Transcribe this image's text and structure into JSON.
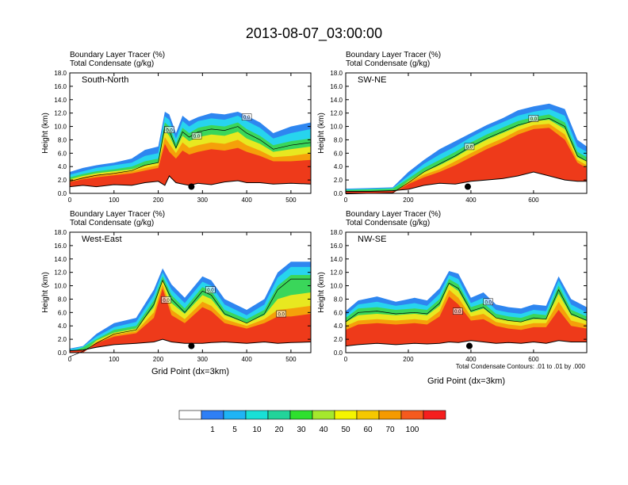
{
  "figure": {
    "title": "2013-08-07_03:00:00",
    "contour_note": "Total Condensate Contours: .01 to .01 by .000",
    "colorbar": {
      "ticks": [
        "1",
        "5",
        "10",
        "20",
        "30",
        "40",
        "50",
        "60",
        "70",
        "100"
      ],
      "colors": [
        "#ffffff",
        "#2e7ff5",
        "#1fb4f5",
        "#19e0d6",
        "#22d49a",
        "#2ee02e",
        "#a5e82d",
        "#f5f500",
        "#f5c800",
        "#f59a00",
        "#f55a1e",
        "#f51e1e"
      ]
    }
  },
  "chart_data": [
    {
      "type": "heatmap",
      "id": "p1",
      "subtitle_line1": "Boundary Layer Tracer   (%)",
      "subtitle_line2": "Total Condensate   (g/kg)",
      "panel_label": "South-North",
      "ylabel": "Height (km)",
      "xlabel": "",
      "xlim": [
        0,
        545
      ],
      "ylim": [
        0,
        18
      ],
      "xticks": [
        "0",
        "100",
        "200",
        "300",
        "400",
        "500"
      ],
      "xtick_values": [
        0,
        100,
        200,
        300,
        400,
        500
      ],
      "yticks": [
        "0.0",
        "2.0",
        "4.0",
        "6.0",
        "8.0",
        "10.0",
        "12.0",
        "14.0",
        "16.0",
        "18.0"
      ],
      "marker": {
        "x": 275,
        "y": 1.0
      },
      "contour_labels": [
        {
          "text": "0.0",
          "x": 225,
          "y": 9.5
        },
        {
          "text": "0.0",
          "x": 287,
          "y": 8.6
        },
        {
          "text": "0.0",
          "x": 400,
          "y": 11.4
        }
      ],
      "profile": {
        "x": [
          0,
          30,
          60,
          100,
          140,
          170,
          200,
          215,
          225,
          240,
          255,
          270,
          290,
          320,
          350,
          380,
          400,
          430,
          460,
          500,
          545
        ],
        "terrain": [
          1.0,
          1.2,
          1.0,
          1.3,
          1.2,
          1.6,
          1.8,
          1.2,
          2.6,
          1.6,
          1.4,
          1.2,
          1.5,
          1.3,
          1.7,
          1.9,
          1.6,
          1.6,
          1.4,
          1.5,
          1.4
        ],
        "blue": [
          3.2,
          3.8,
          4.2,
          4.6,
          5.2,
          6.5,
          7.0,
          12.2,
          11.8,
          9.0,
          11.6,
          10.8,
          11.4,
          12.0,
          11.8,
          12.2,
          11.6,
          10.6,
          9.0,
          10.0,
          10.6
        ],
        "cyan": [
          2.8,
          3.3,
          3.8,
          4.2,
          4.6,
          5.6,
          6.0,
          11.5,
          11.0,
          8.2,
          10.8,
          10.0,
          10.8,
          11.2,
          11.0,
          11.6,
          10.8,
          9.8,
          8.2,
          9.0,
          9.6
        ],
        "green": [
          2.4,
          2.9,
          3.3,
          3.6,
          4.0,
          4.8,
          5.2,
          10.6,
          10.0,
          7.4,
          9.8,
          9.0,
          9.8,
          10.2,
          10.0,
          10.6,
          9.6,
          8.6,
          7.2,
          7.8,
          8.2
        ],
        "yellow": [
          2.1,
          2.6,
          3.0,
          3.3,
          3.6,
          4.2,
          4.6,
          9.4,
          8.6,
          6.6,
          8.6,
          7.8,
          8.4,
          8.8,
          8.6,
          9.2,
          8.2,
          7.4,
          6.2,
          6.6,
          7.0
        ],
        "orange": [
          1.9,
          2.4,
          2.8,
          3.0,
          3.3,
          3.8,
          4.2,
          8.4,
          7.4,
          6.0,
          7.6,
          6.8,
          7.2,
          7.6,
          7.4,
          8.0,
          7.2,
          6.4,
          5.4,
          5.6,
          6.0
        ],
        "red": [
          1.7,
          2.1,
          2.4,
          2.7,
          3.0,
          3.4,
          3.8,
          7.4,
          6.2,
          5.2,
          6.4,
          5.8,
          6.2,
          6.6,
          6.4,
          6.8,
          6.2,
          5.6,
          4.8,
          4.8,
          5.0
        ]
      }
    },
    {
      "type": "heatmap",
      "id": "p2",
      "subtitle_line1": "Boundary Layer Tracer   (%)",
      "subtitle_line2": "Total Condensate   (g/kg)",
      "panel_label": "SW-NE",
      "ylabel": "Height (km)",
      "xlabel": "",
      "xlim": [
        0,
        770
      ],
      "ylim": [
        0,
        18
      ],
      "xticks": [
        "0",
        "200",
        "400",
        "600"
      ],
      "xtick_values": [
        0,
        200,
        400,
        600
      ],
      "yticks": [
        "0.0",
        "2.0",
        "4.0",
        "6.0",
        "8.0",
        "10.0",
        "12.0",
        "14.0",
        "16.0",
        "18.0"
      ],
      "marker": {
        "x": 390,
        "y": 1.0
      },
      "contour_labels": [
        {
          "text": "0.0",
          "x": 395,
          "y": 7.0
        },
        {
          "text": "0.0",
          "x": 600,
          "y": 11.2
        }
      ],
      "profile": {
        "x": [
          0,
          80,
          150,
          200,
          250,
          300,
          350,
          400,
          450,
          500,
          550,
          600,
          650,
          700,
          740,
          770
        ],
        "terrain": [
          0.3,
          0.3,
          0.4,
          0.6,
          1.2,
          1.5,
          1.4,
          1.8,
          2.0,
          2.2,
          2.6,
          3.2,
          2.6,
          2.0,
          1.8,
          1.8
        ],
        "blue": [
          0.7,
          0.8,
          0.9,
          3.2,
          5.0,
          6.6,
          7.8,
          9.0,
          10.2,
          11.2,
          12.4,
          13.0,
          13.4,
          12.6,
          8.0,
          7.0
        ],
        "cyan": [
          0.6,
          0.7,
          0.8,
          2.6,
          4.4,
          5.8,
          7.0,
          8.4,
          9.6,
          10.6,
          11.6,
          12.2,
          12.6,
          11.6,
          7.0,
          6.2
        ],
        "green": [
          0.5,
          0.6,
          0.7,
          2.2,
          3.8,
          5.0,
          6.2,
          7.6,
          8.8,
          9.8,
          10.8,
          11.4,
          11.8,
          10.6,
          6.2,
          5.4
        ],
        "yellow": [
          0.0,
          0.0,
          0.0,
          1.8,
          3.2,
          4.2,
          5.4,
          6.8,
          8.0,
          9.0,
          10.0,
          10.8,
          11.0,
          9.6,
          5.4,
          4.8
        ],
        "orange": [
          0.0,
          0.0,
          0.0,
          1.6,
          2.8,
          3.6,
          4.8,
          6.0,
          7.2,
          8.2,
          9.4,
          10.2,
          10.4,
          8.8,
          5.0,
          4.2
        ],
        "red": [
          0.0,
          0.0,
          0.0,
          1.4,
          2.4,
          3.2,
          4.2,
          5.4,
          6.6,
          7.6,
          8.8,
          9.6,
          9.8,
          8.0,
          4.6,
          3.8
        ]
      }
    },
    {
      "type": "heatmap",
      "id": "p3",
      "subtitle_line1": "Boundary Layer Tracer   (%)",
      "subtitle_line2": "Total Condensate   (g/kg)",
      "panel_label": "West-East",
      "ylabel": "Height (km)",
      "xlabel": "Grid Point (dx=3km)",
      "xlim": [
        0,
        545
      ],
      "ylim": [
        0,
        18
      ],
      "xticks": [
        "0",
        "100",
        "200",
        "300",
        "400",
        "500"
      ],
      "xtick_values": [
        0,
        100,
        200,
        300,
        400,
        500
      ],
      "yticks": [
        "0.0",
        "2.0",
        "4.0",
        "6.0",
        "8.0",
        "10.0",
        "12.0",
        "14.0",
        "16.0",
        "18.0"
      ],
      "marker": {
        "x": 275,
        "y": 1.0
      },
      "contour_labels": [
        {
          "text": "0.0",
          "x": 218,
          "y": 7.9
        },
        {
          "text": "0.0",
          "x": 318,
          "y": 9.4
        },
        {
          "text": "0.0",
          "x": 478,
          "y": 5.8
        }
      ],
      "profile": {
        "x": [
          0,
          30,
          60,
          100,
          150,
          190,
          210,
          230,
          260,
          300,
          320,
          350,
          400,
          440,
          470,
          500,
          545
        ],
        "terrain": [
          0.3,
          0.4,
          0.8,
          1.2,
          1.4,
          1.6,
          2.0,
          1.6,
          1.4,
          1.4,
          1.5,
          1.6,
          1.4,
          1.6,
          1.4,
          1.5,
          1.6
        ],
        "blue": [
          0.6,
          1.0,
          2.8,
          4.4,
          5.2,
          9.4,
          12.6,
          10.2,
          8.2,
          11.4,
          10.8,
          8.0,
          6.4,
          8.0,
          12.0,
          13.6,
          13.6
        ],
        "cyan": [
          0.5,
          0.9,
          2.4,
          3.8,
          4.6,
          8.6,
          12.0,
          9.4,
          7.4,
          10.6,
          10.0,
          7.2,
          5.6,
          7.2,
          11.2,
          12.8,
          12.8
        ],
        "green": [
          0.0,
          0.8,
          2.0,
          3.4,
          4.0,
          7.8,
          11.4,
          8.6,
          6.6,
          9.8,
          9.2,
          6.4,
          5.0,
          6.4,
          10.0,
          11.6,
          11.6
        ],
        "yellow": [
          0.0,
          0.0,
          1.8,
          3.0,
          3.6,
          6.8,
          10.8,
          7.4,
          5.8,
          8.6,
          8.0,
          5.6,
          4.4,
          5.6,
          8.0,
          8.6,
          9.0
        ],
        "orange": [
          0.0,
          0.0,
          1.6,
          2.7,
          3.2,
          6.0,
          10.2,
          6.4,
          5.0,
          7.6,
          7.0,
          5.0,
          4.0,
          5.0,
          6.4,
          6.6,
          7.0
        ],
        "red": [
          0.0,
          0.0,
          1.4,
          2.4,
          2.9,
          5.2,
          9.6,
          5.6,
          4.4,
          6.8,
          6.2,
          4.4,
          3.6,
          4.4,
          5.4,
          5.4,
          5.8
        ]
      }
    },
    {
      "type": "heatmap",
      "id": "p4",
      "subtitle_line1": "Boundary Layer Tracer   (%)",
      "subtitle_line2": "Total Condensate   (g/kg)",
      "panel_label": "NW-SE",
      "ylabel": "Height (km)",
      "xlabel": "Grid Point (dx=3km)",
      "xlim": [
        0,
        770
      ],
      "ylim": [
        0,
        18
      ],
      "xticks": [
        "0",
        "200",
        "400",
        "600"
      ],
      "xtick_values": [
        0,
        200,
        400,
        600
      ],
      "yticks": [
        "0.0",
        "2.0",
        "4.0",
        "6.0",
        "8.0",
        "10.0",
        "12.0",
        "14.0",
        "16.0",
        "18.0"
      ],
      "marker": {
        "x": 395,
        "y": 1.0
      },
      "contour_labels": [
        {
          "text": "0.0",
          "x": 358,
          "y": 6.2
        },
        {
          "text": "0.0",
          "x": 455,
          "y": 7.6
        }
      ],
      "profile": {
        "x": [
          0,
          40,
          100,
          160,
          220,
          260,
          300,
          330,
          360,
          400,
          440,
          480,
          520,
          560,
          600,
          640,
          680,
          720,
          770
        ],
        "terrain": [
          1.0,
          1.2,
          1.4,
          1.2,
          1.4,
          1.3,
          1.4,
          1.6,
          1.5,
          1.8,
          1.6,
          1.4,
          1.5,
          1.4,
          1.6,
          1.4,
          1.8,
          1.6,
          1.6
        ],
        "blue": [
          6.2,
          7.8,
          8.4,
          7.6,
          8.2,
          7.8,
          9.6,
          12.2,
          11.8,
          8.2,
          9.0,
          7.2,
          6.8,
          6.6,
          7.2,
          7.0,
          11.4,
          8.0,
          6.8
        ],
        "cyan": [
          5.6,
          7.2,
          7.6,
          7.0,
          7.4,
          7.0,
          8.8,
          11.6,
          11.0,
          7.4,
          8.2,
          6.4,
          6.0,
          5.8,
          6.4,
          6.2,
          10.8,
          7.2,
          6.0
        ],
        "green": [
          5.2,
          6.6,
          6.8,
          6.4,
          6.6,
          6.4,
          8.0,
          11.0,
          10.2,
          6.8,
          7.4,
          5.8,
          5.4,
          5.2,
          5.8,
          5.6,
          10.0,
          6.4,
          5.4
        ],
        "yellow": [
          4.6,
          5.6,
          5.8,
          5.6,
          5.8,
          5.6,
          7.0,
          10.2,
          9.2,
          6.0,
          6.6,
          5.2,
          4.8,
          4.6,
          5.0,
          5.0,
          8.8,
          5.6,
          4.8
        ],
        "orange": [
          4.0,
          4.8,
          5.0,
          4.8,
          5.0,
          4.8,
          6.2,
          9.4,
          8.2,
          5.4,
          5.8,
          4.6,
          4.2,
          4.0,
          4.4,
          4.4,
          7.6,
          4.8,
          4.2
        ],
        "red": [
          3.4,
          4.2,
          4.4,
          4.2,
          4.4,
          4.2,
          5.4,
          8.4,
          7.2,
          4.8,
          5.0,
          4.0,
          3.6,
          3.4,
          3.8,
          3.8,
          6.4,
          4.0,
          3.6
        ]
      }
    }
  ]
}
